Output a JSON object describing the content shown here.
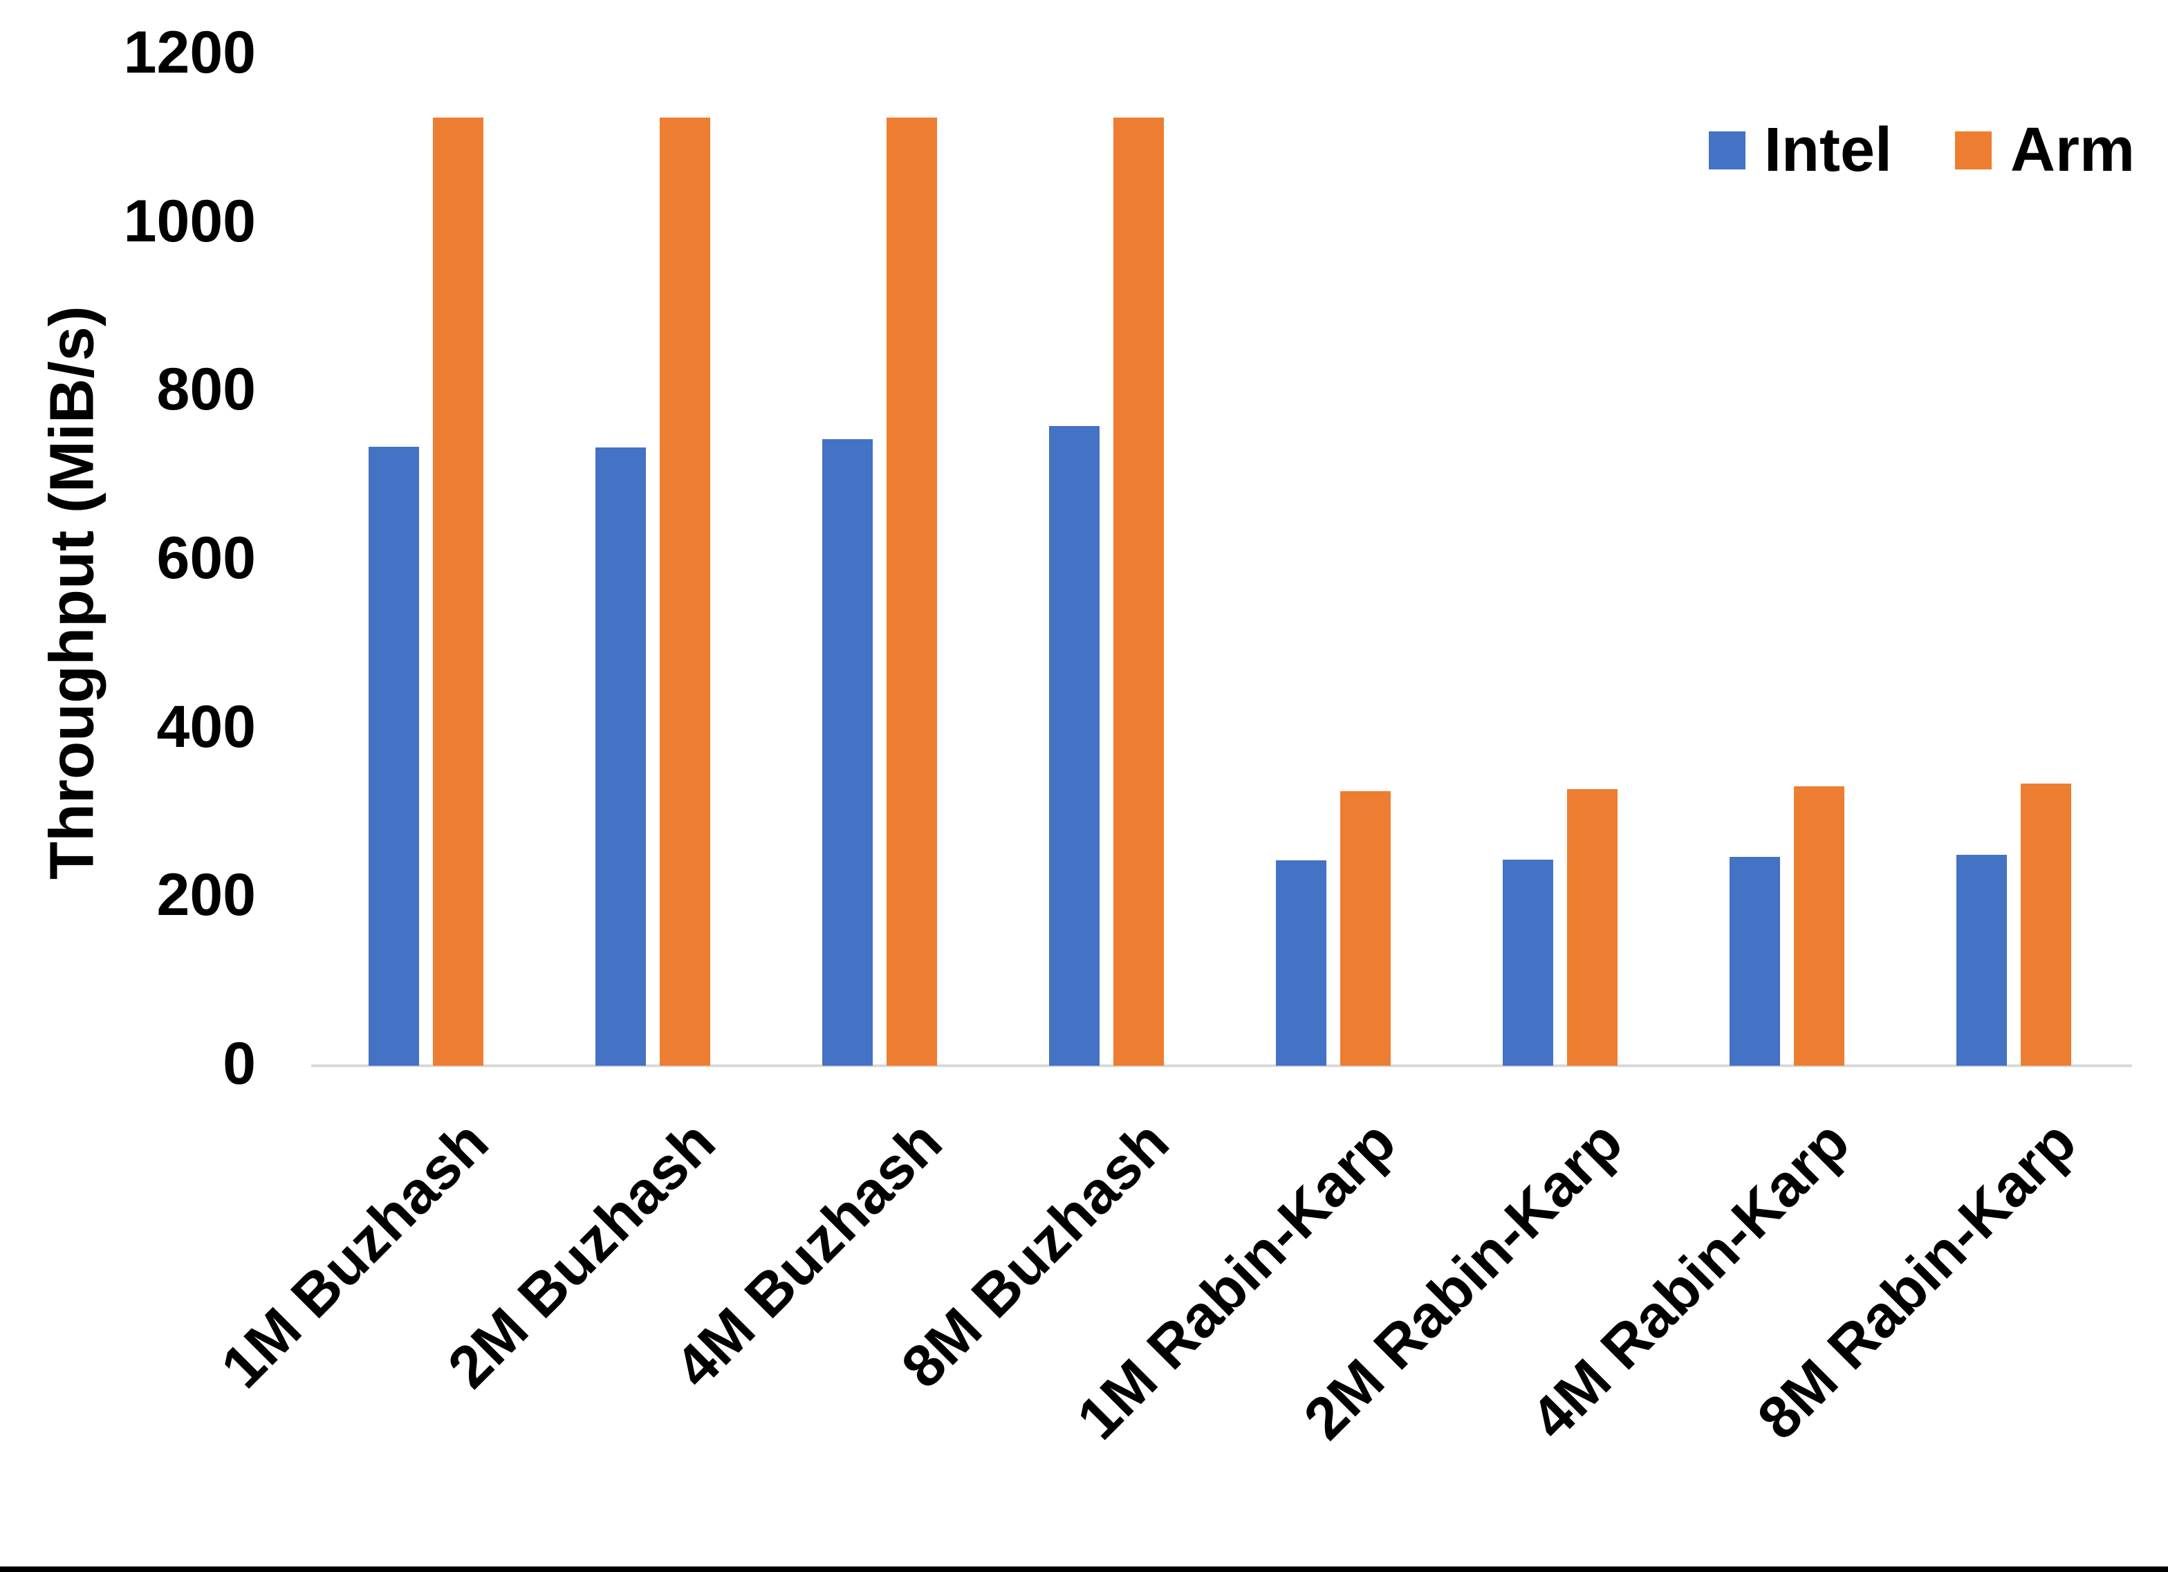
{
  "chart_data": {
    "type": "bar",
    "categories": [
      "1M Buzhash",
      "2M Buzhash",
      "4M Buzhash",
      "8M Buzhash",
      "1M Rabin-Karp",
      "2M Rabin-Karp",
      "4M Rabin-Karp",
      "8M Rabin-Karp"
    ],
    "series": [
      {
        "name": "Intel",
        "color": "#4472C4",
        "values": [
          735,
          734,
          744,
          759,
          244,
          245,
          248,
          250
        ]
      },
      {
        "name": "Arm",
        "color": "#ED7D31",
        "values": [
          1125,
          1125,
          1125,
          1125,
          326,
          328,
          332,
          335
        ]
      }
    ],
    "title": "",
    "xlabel": "",
    "ylabel": "Throughput (MiB/s)",
    "yticks": [
      0,
      200,
      400,
      600,
      800,
      1000,
      1200
    ],
    "ylim": [
      0,
      1200
    ],
    "grid": false,
    "legend_position": "top-right",
    "colors": {
      "axis_line": "#D9D9D9",
      "text": "#000000",
      "page_edge": "#000000"
    }
  }
}
